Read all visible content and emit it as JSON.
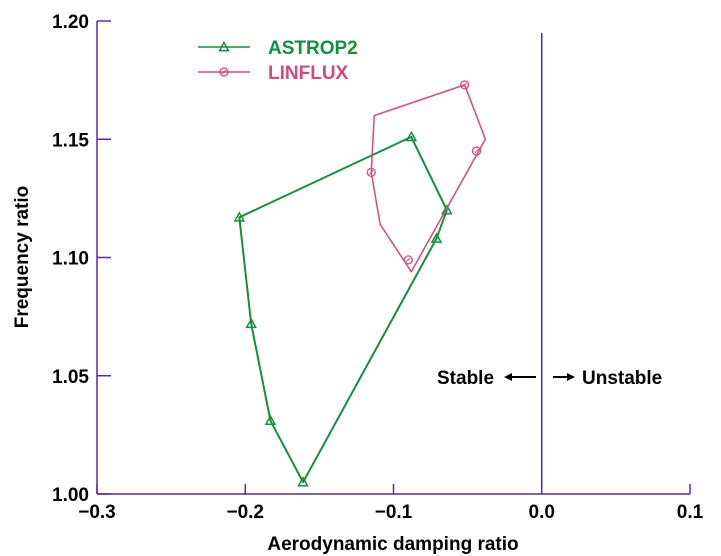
{
  "chart_data": {
    "type": "line",
    "xlabel": "Aerodynamic damping ratio",
    "ylabel": "Frequency ratio",
    "xlim": [
      -0.3,
      0.1
    ],
    "ylim": [
      1.0,
      1.2
    ],
    "xticks": [
      "−0.3",
      "−0.2",
      "−0.1",
      "0.0",
      "0.1"
    ],
    "yticks": [
      "1.00",
      "1.05",
      "1.10",
      "1.15",
      "1.20"
    ],
    "xtick_values": [
      -0.3,
      -0.2,
      -0.1,
      0.0,
      0.1
    ],
    "ytick_values": [
      1.0,
      1.05,
      1.1,
      1.15,
      1.2
    ],
    "grid": false,
    "legend_position": "top-left",
    "vertical_line_x": 0.0,
    "annotations": {
      "stable": "Stable",
      "unstable": "Unstable"
    },
    "series": [
      {
        "name": "ASTROP2",
        "color": "#12903c",
        "marker": "triangle",
        "points": [
          {
            "x": -0.088,
            "y": 1.151
          },
          {
            "x": -0.064,
            "y": 1.12
          },
          {
            "x": -0.071,
            "y": 1.108
          },
          {
            "x": -0.161,
            "y": 1.005
          },
          {
            "x": -0.183,
            "y": 1.031
          },
          {
            "x": -0.196,
            "y": 1.072
          },
          {
            "x": -0.204,
            "y": 1.117
          }
        ],
        "marker_points": [
          {
            "x": -0.088,
            "y": 1.151
          },
          {
            "x": -0.064,
            "y": 1.12
          },
          {
            "x": -0.071,
            "y": 1.108
          },
          {
            "x": -0.161,
            "y": 1.005
          },
          {
            "x": -0.183,
            "y": 1.031
          },
          {
            "x": -0.196,
            "y": 1.072
          },
          {
            "x": -0.204,
            "y": 1.117
          }
        ]
      },
      {
        "name": "LINFLUX",
        "color": "#d24a7e",
        "marker": "circle",
        "points": [
          {
            "x": -0.052,
            "y": 1.173
          },
          {
            "x": -0.038,
            "y": 1.15
          },
          {
            "x": -0.088,
            "y": 1.094
          },
          {
            "x": -0.109,
            "y": 1.114
          },
          {
            "x": -0.115,
            "y": 1.136
          },
          {
            "x": -0.113,
            "y": 1.16
          },
          {
            "x": -0.052,
            "y": 1.173
          }
        ],
        "marker_points": [
          {
            "x": -0.052,
            "y": 1.173
          },
          {
            "x": -0.044,
            "y": 1.145
          },
          {
            "x": -0.09,
            "y": 1.099
          },
          {
            "x": -0.115,
            "y": 1.136
          }
        ]
      }
    ]
  },
  "colors": {
    "axis": "#5a2ca0"
  }
}
